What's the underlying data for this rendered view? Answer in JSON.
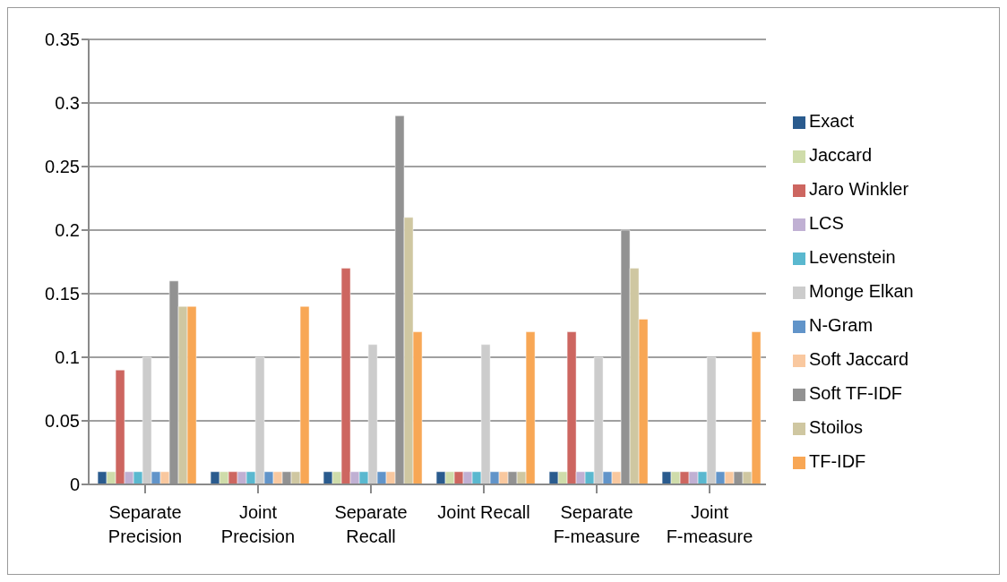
{
  "chart_data": {
    "type": "bar",
    "categories": [
      "Separate Precision",
      "Joint Precision",
      "Separate Recall",
      "Joint Recall",
      "Separate F-measure",
      "Joint F-measure"
    ],
    "series": [
      {
        "name": "Exact",
        "color": "#2a5b8e",
        "values": [
          0.01,
          0.01,
          0.01,
          0.01,
          0.01,
          0.01
        ]
      },
      {
        "name": "Jaccard",
        "color": "#cfdcaa",
        "values": [
          0.01,
          0.01,
          0.01,
          0.01,
          0.01,
          0.01
        ]
      },
      {
        "name": "Jaro Winkler",
        "color": "#cd6660",
        "values": [
          0.09,
          0.01,
          0.17,
          0.01,
          0.12,
          0.01
        ]
      },
      {
        "name": "LCS",
        "color": "#c0b0d3",
        "values": [
          0.01,
          0.01,
          0.01,
          0.01,
          0.01,
          0.01
        ]
      },
      {
        "name": "Levenstein",
        "color": "#5ab8cf",
        "values": [
          0.01,
          0.01,
          0.01,
          0.01,
          0.01,
          0.01
        ]
      },
      {
        "name": "Monge Elkan",
        "color": "#cccccc",
        "values": [
          0.1,
          0.1,
          0.11,
          0.11,
          0.1,
          0.1
        ]
      },
      {
        "name": "N-Gram",
        "color": "#6194c9",
        "values": [
          0.01,
          0.01,
          0.01,
          0.01,
          0.01,
          0.01
        ]
      },
      {
        "name": "Soft Jaccard",
        "color": "#f9c89f",
        "values": [
          0.01,
          0.01,
          0.01,
          0.01,
          0.01,
          0.01
        ]
      },
      {
        "name": "Soft TF-IDF",
        "color": "#929292",
        "values": [
          0.16,
          0.01,
          0.29,
          0.01,
          0.2,
          0.01
        ]
      },
      {
        "name": "Stoilos",
        "color": "#cfc7a1",
        "values": [
          0.14,
          0.01,
          0.21,
          0.01,
          0.17,
          0.01
        ]
      },
      {
        "name": "TF-IDF",
        "color": "#f8a755",
        "values": [
          0.14,
          0.14,
          0.12,
          0.12,
          0.13,
          0.12
        ]
      }
    ],
    "ylim": [
      0,
      0.35
    ],
    "yticks": [
      0,
      0.05,
      0.1,
      0.15,
      0.2,
      0.25,
      0.3,
      0.35
    ],
    "grid": "y",
    "legend": "right"
  }
}
